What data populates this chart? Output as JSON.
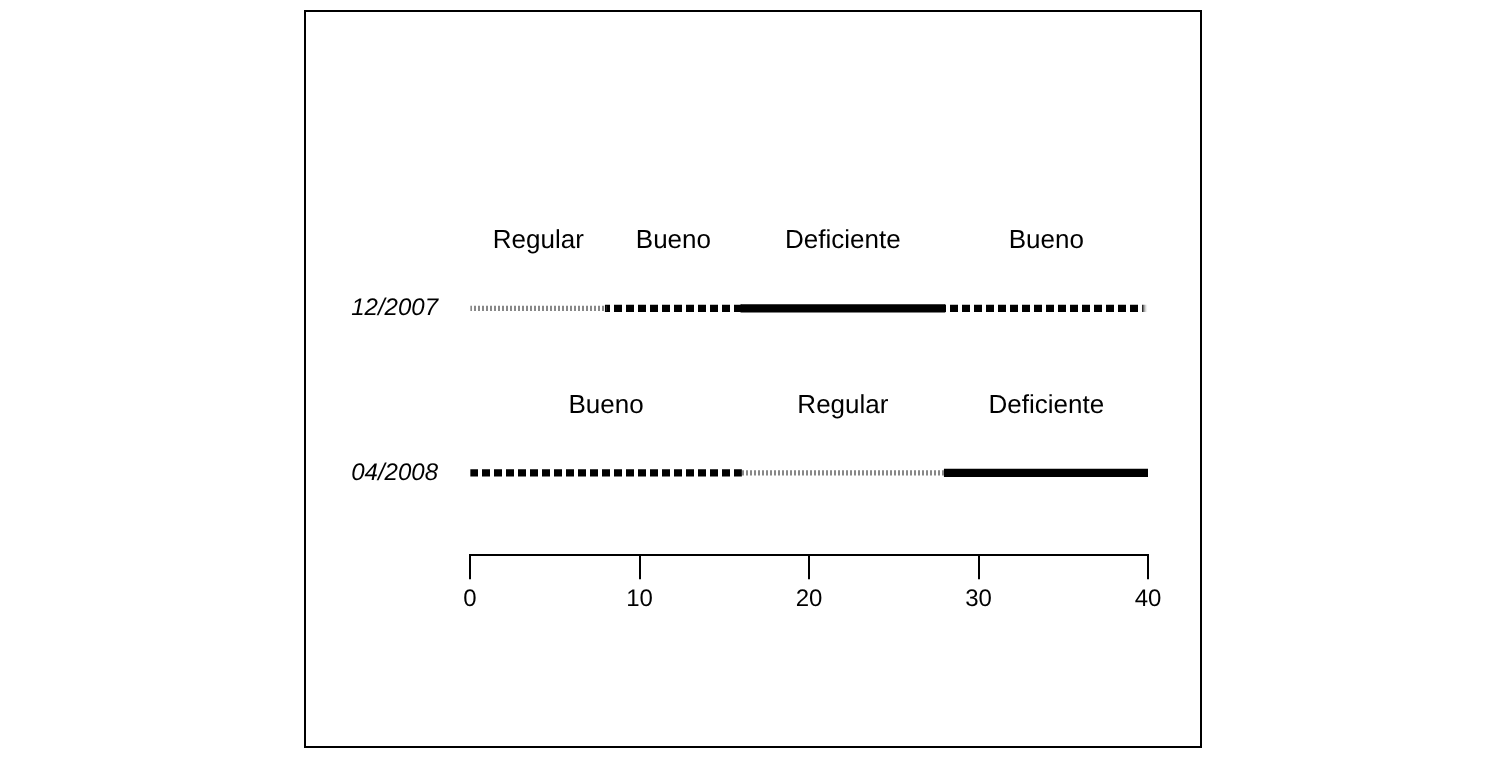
{
  "chart_data": {
    "type": "bar",
    "orientation": "horizontal",
    "categories": [
      "12/2007",
      "04/2008"
    ],
    "xlim": [
      0,
      40
    ],
    "xticks": [
      0,
      10,
      20,
      30,
      40
    ],
    "series": [
      {
        "name": "Regular",
        "color": "#888888",
        "line_style": "dotted",
        "values": [
          8,
          12
        ],
        "base": [
          0,
          16
        ]
      },
      {
        "name": "Bueno",
        "color": "#000000",
        "line_style": "dashed",
        "values": [
          8,
          16
        ],
        "base": [
          8,
          0
        ]
      },
      {
        "name": "Deficiente",
        "color": "#000000",
        "line_style": "solid",
        "values": [
          12,
          12
        ],
        "base": [
          16,
          28
        ]
      },
      {
        "name": "Bueno",
        "color": "#000000",
        "line_style": "dashed",
        "values": [
          12,
          null
        ],
        "base": [
          28,
          null
        ]
      }
    ]
  }
}
